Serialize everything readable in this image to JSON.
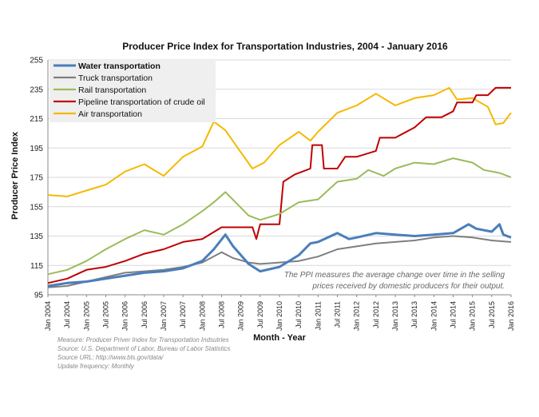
{
  "chart_data": {
    "type": "line",
    "title": "Producer Price Index for Transportation Industries, 2004 - January 2016",
    "xlabel": "Month - Year",
    "ylabel": "Producer Price Index",
    "ylim": [
      95,
      255
    ],
    "yticks": [
      95,
      115,
      135,
      155,
      175,
      195,
      215,
      235,
      255
    ],
    "xlim": [
      2004.0,
      2016.0
    ],
    "x_tick_labels": [
      "Jan 2004",
      "Jul 2004",
      "Jan 2005",
      "Jul 2005",
      "Jan 2006",
      "Jul 2006",
      "Jan 2007",
      "Jul 2007",
      "Jan 2008",
      "Jul 2008",
      "Jan 2009",
      "Jul 2009",
      "Jan 2010",
      "Jul 2010",
      "Jan 2011",
      "Jul 2011",
      "Jan 2012",
      "Jul 2012",
      "Jan 2013",
      "Jul 2013",
      "Jan 2014",
      "Jul 2014",
      "Jan 2015",
      "Jul 2015",
      "Jan 2016"
    ],
    "grid": "horizontal",
    "legend_position": "top-left",
    "annotation": [
      "The PPI measures the average change over time in the selling",
      "prices received by domestic producers for their output."
    ],
    "footnotes": [
      "Measure: Producer Priver Index for Transportation Indsutries",
      "Source: U.S. Department of Labor, Bureau of Labor Statistics",
      "Source URL: http://www.bls.gov/data/",
      "Update frequency: Monthly"
    ],
    "series": [
      {
        "name": "Water transportation",
        "color": "#4a7ebb",
        "points": [
          [
            2004.0,
            101
          ],
          [
            2004.5,
            103
          ],
          [
            2005.0,
            104
          ],
          [
            2005.5,
            106
          ],
          [
            2006.0,
            108
          ],
          [
            2006.5,
            110
          ],
          [
            2007.0,
            111
          ],
          [
            2007.5,
            113
          ],
          [
            2008.0,
            118
          ],
          [
            2008.3,
            126
          ],
          [
            2008.6,
            136
          ],
          [
            2008.8,
            128
          ],
          [
            2009.2,
            116
          ],
          [
            2009.5,
            111
          ],
          [
            2010.0,
            114
          ],
          [
            2010.5,
            122
          ],
          [
            2010.8,
            130
          ],
          [
            2011.0,
            131
          ],
          [
            2011.5,
            137
          ],
          [
            2011.8,
            133
          ],
          [
            2012.0,
            134
          ],
          [
            2012.5,
            137
          ],
          [
            2013.0,
            136
          ],
          [
            2013.5,
            135
          ],
          [
            2014.0,
            136
          ],
          [
            2014.5,
            137
          ],
          [
            2014.9,
            143
          ],
          [
            2015.1,
            140
          ],
          [
            2015.5,
            138
          ],
          [
            2015.7,
            143
          ],
          [
            2015.8,
            136
          ],
          [
            2016.0,
            134
          ]
        ]
      },
      {
        "name": "Truck transportation",
        "color": "#7f7f7f",
        "points": [
          [
            2004.0,
            100
          ],
          [
            2004.5,
            101
          ],
          [
            2005.0,
            104
          ],
          [
            2005.5,
            107
          ],
          [
            2006.0,
            110
          ],
          [
            2006.5,
            111
          ],
          [
            2007.0,
            112
          ],
          [
            2007.5,
            114
          ],
          [
            2008.0,
            117
          ],
          [
            2008.5,
            124
          ],
          [
            2008.8,
            120
          ],
          [
            2009.2,
            117
          ],
          [
            2009.5,
            116
          ],
          [
            2010.0,
            117
          ],
          [
            2010.5,
            118
          ],
          [
            2011.0,
            121
          ],
          [
            2011.5,
            126
          ],
          [
            2012.0,
            128
          ],
          [
            2012.5,
            130
          ],
          [
            2013.0,
            131
          ],
          [
            2013.5,
            132
          ],
          [
            2014.0,
            134
          ],
          [
            2014.5,
            135
          ],
          [
            2015.0,
            134
          ],
          [
            2015.5,
            132
          ],
          [
            2016.0,
            131
          ]
        ]
      },
      {
        "name": "Rail transportation",
        "color": "#9bbb59",
        "points": [
          [
            2004.0,
            109
          ],
          [
            2004.5,
            112
          ],
          [
            2005.0,
            118
          ],
          [
            2005.5,
            126
          ],
          [
            2006.0,
            133
          ],
          [
            2006.5,
            139
          ],
          [
            2007.0,
            136
          ],
          [
            2007.5,
            143
          ],
          [
            2008.0,
            152
          ],
          [
            2008.3,
            158
          ],
          [
            2008.6,
            165
          ],
          [
            2008.9,
            157
          ],
          [
            2009.2,
            149
          ],
          [
            2009.5,
            146
          ],
          [
            2010.0,
            150
          ],
          [
            2010.5,
            158
          ],
          [
            2011.0,
            160
          ],
          [
            2011.5,
            172
          ],
          [
            2012.0,
            174
          ],
          [
            2012.3,
            180
          ],
          [
            2012.7,
            176
          ],
          [
            2013.0,
            181
          ],
          [
            2013.5,
            185
          ],
          [
            2014.0,
            184
          ],
          [
            2014.5,
            188
          ],
          [
            2015.0,
            185
          ],
          [
            2015.3,
            180
          ],
          [
            2015.7,
            178
          ],
          [
            2016.0,
            175
          ]
        ]
      },
      {
        "name": "Pipeline transportation of crude oil",
        "color": "#c00000",
        "points": [
          [
            2004.0,
            103
          ],
          [
            2004.5,
            106
          ],
          [
            2005.0,
            112
          ],
          [
            2005.5,
            114
          ],
          [
            2006.0,
            118
          ],
          [
            2006.5,
            123
          ],
          [
            2007.0,
            126
          ],
          [
            2007.5,
            131
          ],
          [
            2008.0,
            133
          ],
          [
            2008.5,
            141
          ],
          [
            2009.0,
            141
          ],
          [
            2009.3,
            141
          ],
          [
            2009.4,
            133
          ],
          [
            2009.5,
            143
          ],
          [
            2010.0,
            143
          ],
          [
            2010.1,
            172
          ],
          [
            2010.4,
            177
          ],
          [
            2010.8,
            181
          ],
          [
            2010.85,
            197
          ],
          [
            2011.1,
            197
          ],
          [
            2011.15,
            181
          ],
          [
            2011.5,
            181
          ],
          [
            2011.7,
            189
          ],
          [
            2012.0,
            189
          ],
          [
            2012.5,
            193
          ],
          [
            2012.6,
            202
          ],
          [
            2013.0,
            202
          ],
          [
            2013.5,
            209
          ],
          [
            2013.8,
            216
          ],
          [
            2014.2,
            216
          ],
          [
            2014.5,
            220
          ],
          [
            2014.6,
            226
          ],
          [
            2015.0,
            226
          ],
          [
            2015.1,
            231
          ],
          [
            2015.4,
            231
          ],
          [
            2015.6,
            236
          ],
          [
            2016.0,
            236
          ]
        ]
      },
      {
        "name": "Air transportation",
        "color": "#f5b800",
        "points": [
          [
            2004.0,
            163
          ],
          [
            2004.5,
            162
          ],
          [
            2005.0,
            166
          ],
          [
            2005.5,
            170
          ],
          [
            2006.0,
            179
          ],
          [
            2006.5,
            184
          ],
          [
            2007.0,
            176
          ],
          [
            2007.5,
            189
          ],
          [
            2008.0,
            196
          ],
          [
            2008.3,
            213
          ],
          [
            2008.6,
            207
          ],
          [
            2009.0,
            192
          ],
          [
            2009.3,
            181
          ],
          [
            2009.6,
            185
          ],
          [
            2010.0,
            197
          ],
          [
            2010.5,
            206
          ],
          [
            2010.8,
            200
          ],
          [
            2011.0,
            206
          ],
          [
            2011.5,
            219
          ],
          [
            2012.0,
            224
          ],
          [
            2012.5,
            232
          ],
          [
            2013.0,
            224
          ],
          [
            2013.5,
            229
          ],
          [
            2014.0,
            231
          ],
          [
            2014.4,
            236
          ],
          [
            2014.6,
            228
          ],
          [
            2015.0,
            229
          ],
          [
            2015.4,
            223
          ],
          [
            2015.6,
            211
          ],
          [
            2015.8,
            212
          ],
          [
            2016.0,
            219
          ]
        ]
      }
    ]
  }
}
